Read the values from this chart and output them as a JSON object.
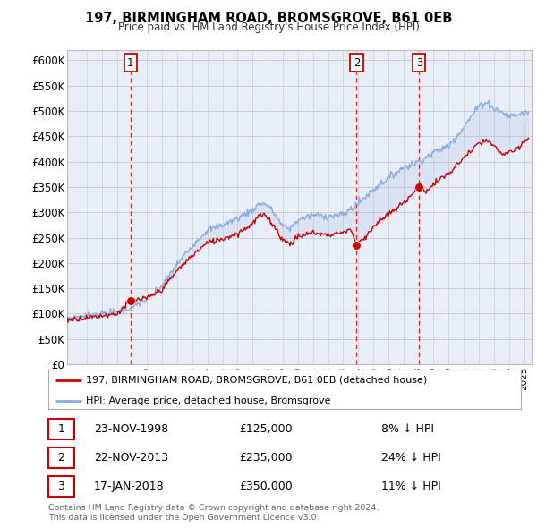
{
  "title": "197, BIRMINGHAM ROAD, BROMSGROVE, B61 0EB",
  "subtitle": "Price paid vs. HM Land Registry's House Price Index (HPI)",
  "sale_decimal": [
    1998.896,
    2013.896,
    2018.046
  ],
  "sale_prices": [
    125000,
    235000,
    350000
  ],
  "sale_labels": [
    "1",
    "2",
    "3"
  ],
  "sale_info": [
    {
      "label": "1",
      "date": "23-NOV-1998",
      "price": "£125,000",
      "pct": "8% ↓ HPI"
    },
    {
      "label": "2",
      "date": "22-NOV-2013",
      "price": "£235,000",
      "pct": "24% ↓ HPI"
    },
    {
      "label": "3",
      "date": "17-JAN-2018",
      "price": "£350,000",
      "pct": "11% ↓ HPI"
    }
  ],
  "legend_line1": "197, BIRMINGHAM ROAD, BROMSGROVE, B61 0EB (detached house)",
  "legend_line2": "HPI: Average price, detached house, Bromsgrove",
  "footnote1": "Contains HM Land Registry data © Crown copyright and database right 2024.",
  "footnote2": "This data is licensed under the Open Government Licence v3.0.",
  "price_line_color": "#cc0000",
  "hpi_line_color": "#88aadd",
  "sale_marker_color": "#cc0000",
  "vline_color": "#cc0000",
  "grid_color": "#cccccc",
  "bg_color": "#ffffff",
  "chart_bg_color": "#e8eef8",
  "ylim": [
    0,
    620000
  ],
  "yticks": [
    0,
    50000,
    100000,
    150000,
    200000,
    250000,
    300000,
    350000,
    400000,
    450000,
    500000,
    550000,
    600000
  ],
  "xlim_start": 1994.7,
  "xlim_end": 2025.5
}
